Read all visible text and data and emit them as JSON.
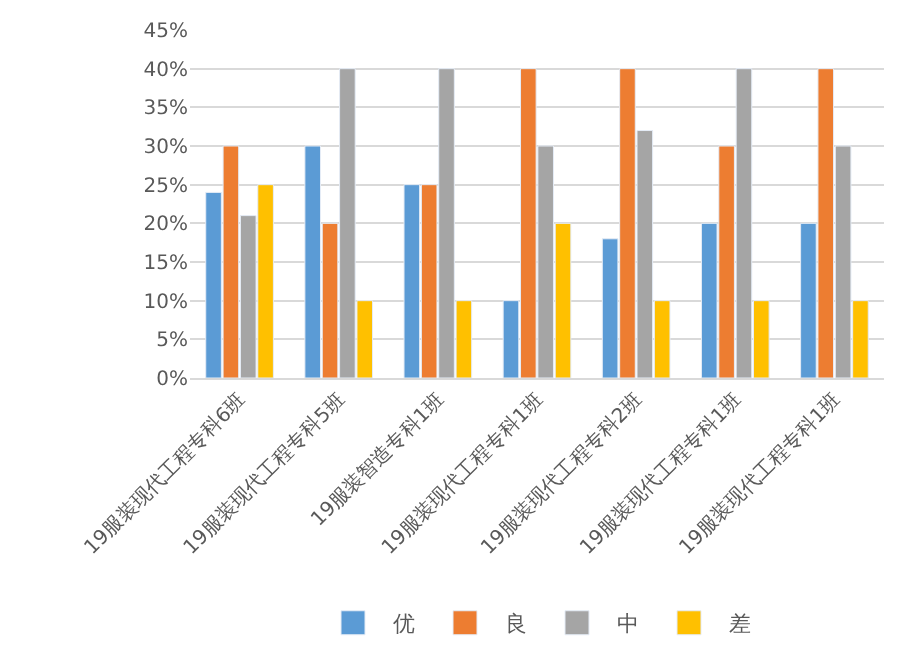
{
  "chart_data": {
    "type": "bar",
    "categories": [
      "19服装现代工程专科6班",
      "19服装现代工程专科5班",
      "19服装智造专科1班",
      "19服装现代工程专科1班",
      "19服装现代工程专科2班",
      "19服装现代工程专科1班",
      "19服装现代工程专科1班"
    ],
    "series": [
      {
        "name": "优",
        "color": "#5b9bd5",
        "values": [
          24,
          30,
          25,
          10,
          18,
          20,
          20
        ]
      },
      {
        "name": "良",
        "color": "#ed7d31",
        "values": [
          30,
          20,
          25,
          40,
          40,
          30,
          40
        ]
      },
      {
        "name": "中",
        "color": "#a5a5a5",
        "values": [
          21,
          40,
          40,
          30,
          32,
          40,
          30
        ]
      },
      {
        "name": "差",
        "color": "#ffc000",
        "values": [
          25,
          10,
          10,
          20,
          10,
          10,
          10
        ]
      }
    ],
    "ylim": [
      0,
      45
    ],
    "yticks": [
      {
        "value": 0,
        "label": "0%"
      },
      {
        "value": 5,
        "label": "5%"
      },
      {
        "value": 10,
        "label": "10%"
      },
      {
        "value": 15,
        "label": "15%"
      },
      {
        "value": 20,
        "label": "20%"
      },
      {
        "value": 25,
        "label": "25%"
      },
      {
        "value": 30,
        "label": "30%"
      },
      {
        "value": 35,
        "label": "35%"
      },
      {
        "value": 40,
        "label": "40%"
      },
      {
        "value": 45,
        "label": "45%"
      }
    ],
    "grid": "y",
    "legend": "bottom"
  }
}
